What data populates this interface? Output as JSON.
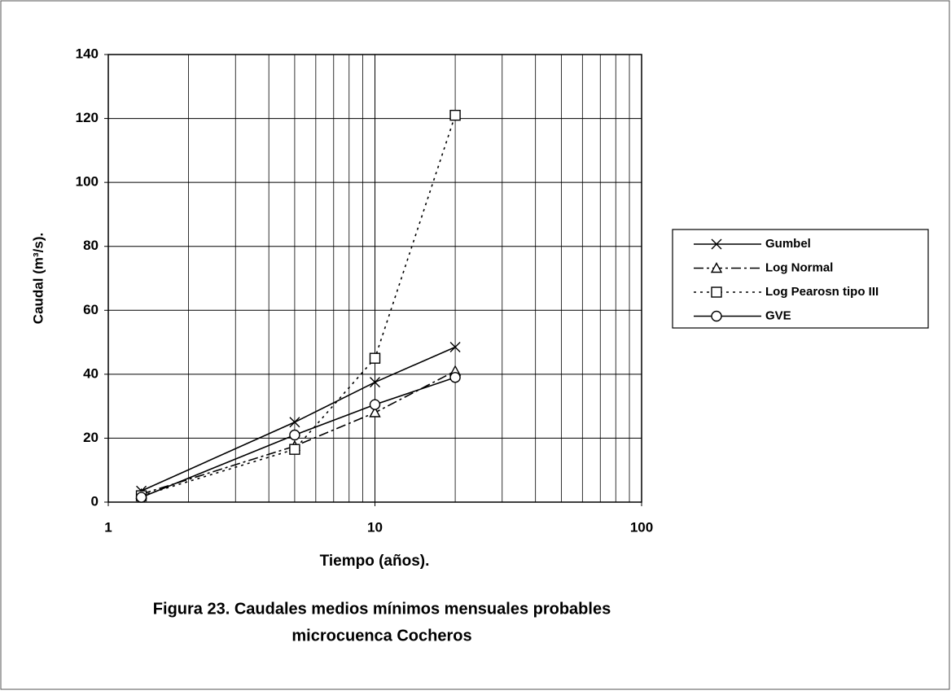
{
  "chart_data": {
    "type": "line",
    "title": [
      "Figura 23. Caudales medios mínimos  mensuales probables",
      "microcuenca Cocheros"
    ],
    "xlabel": "Tiempo (años).",
    "ylabel": "Caudal (m³/s).",
    "x": [
      1.33,
      5,
      10,
      20
    ],
    "series": [
      {
        "name": "Gumbel",
        "color": "#000000",
        "dash": "none",
        "marker": "x",
        "values": [
          3.5,
          25,
          37.5,
          48.5
        ]
      },
      {
        "name": "Log Normal",
        "color": "#000000",
        "dash": "12 4 3 4",
        "marker": "triangle",
        "values": [
          2.5,
          17.5,
          28,
          41
        ]
      },
      {
        "name": "Log Pearosn tipo III",
        "color": "#000000",
        "dash": "3 5",
        "marker": "square",
        "values": [
          2,
          16.5,
          45,
          121
        ]
      },
      {
        "name": "GVE",
        "color": "#000000",
        "dash": "none",
        "marker": "circle",
        "values": [
          1.5,
          21,
          30.5,
          39
        ]
      }
    ],
    "xscale": "log",
    "xlim": [
      1,
      100
    ],
    "xticks": [
      1,
      10,
      100
    ],
    "xminor": [
      2,
      3,
      4,
      5,
      6,
      7,
      8,
      9,
      20,
      30,
      40,
      50,
      60,
      70,
      80,
      90
    ],
    "ylim": [
      0,
      140
    ],
    "yticks": [
      0,
      20,
      40,
      60,
      80,
      100,
      120,
      140
    ],
    "grid": true,
    "legend": "right"
  }
}
